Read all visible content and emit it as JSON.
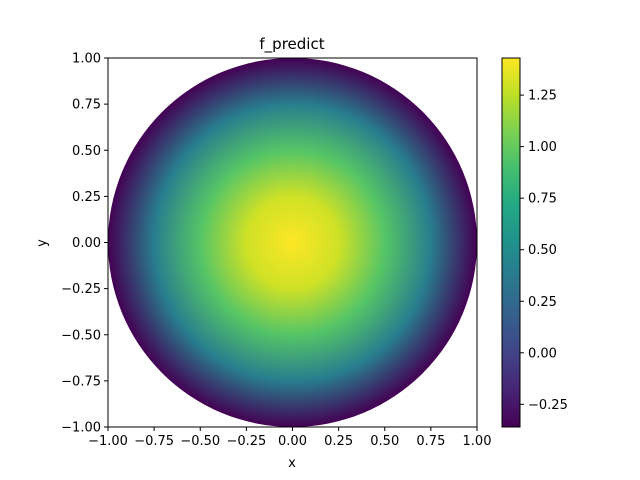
{
  "chart_data": {
    "type": "heatmap",
    "title": "f_predict",
    "xlabel": "x",
    "ylabel": "y",
    "xlim": [
      -1.0,
      1.0
    ],
    "ylim": [
      -1.0,
      1.0
    ],
    "domain": "unit disk (values outside radius 1 not shown)",
    "field": {
      "center": [
        0.0,
        0.0
      ],
      "value_at_center": 1.43,
      "value_at_boundary": -0.36,
      "radial_profile": [
        {
          "r": 0.0,
          "value": 1.43
        },
        {
          "r": 0.25,
          "value": 1.3
        },
        {
          "r": 0.5,
          "value": 0.95
        },
        {
          "r": 0.75,
          "value": 0.4
        },
        {
          "r": 1.0,
          "value": -0.36
        }
      ]
    },
    "colormap": "viridis",
    "colorbar": {
      "vmin": -0.36,
      "vmax": 1.43,
      "ticks": [
        -0.25,
        0.0,
        0.25,
        0.5,
        0.75,
        1.0,
        1.25
      ],
      "tick_labels": [
        "−0.25",
        "0.00",
        "0.25",
        "0.50",
        "0.75",
        "1.00",
        "1.25"
      ]
    },
    "xticks": [
      -1.0,
      -0.75,
      -0.5,
      -0.25,
      0.0,
      0.25,
      0.5,
      0.75,
      1.0
    ],
    "xtick_labels": [
      "−1.00",
      "−0.75",
      "−0.50",
      "−0.25",
      "0.00",
      "0.25",
      "0.50",
      "0.75",
      "1.00"
    ],
    "yticks": [
      -1.0,
      -0.75,
      -0.5,
      -0.25,
      0.0,
      0.25,
      0.5,
      0.75,
      1.0
    ],
    "ytick_labels": [
      "−1.00",
      "−0.75",
      "−0.50",
      "−0.25",
      "0.00",
      "0.25",
      "0.50",
      "0.75",
      "1.00"
    ],
    "grid": false
  }
}
